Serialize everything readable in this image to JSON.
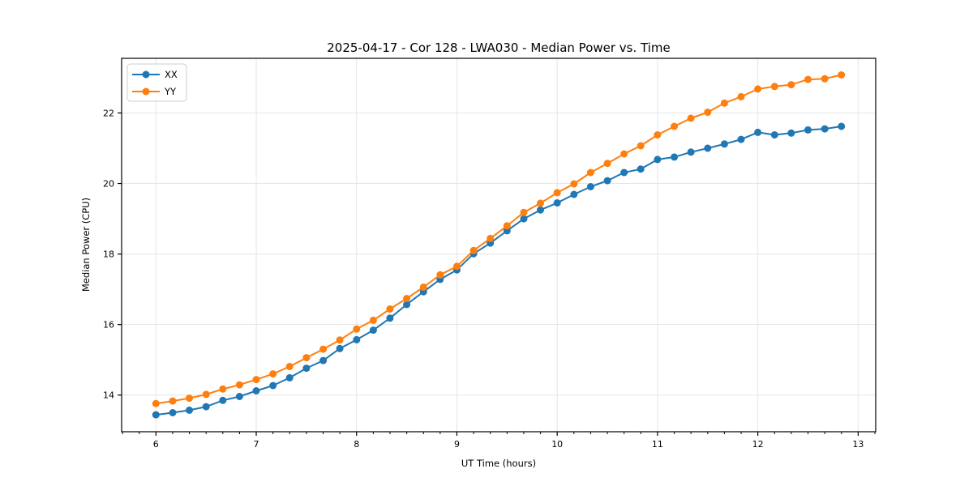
{
  "page": {
    "background": "#ffffff"
  },
  "chart_data": {
    "type": "line",
    "title": "2025-04-17 - Cor 128 - LWA030 - Median Power vs. Time",
    "xlabel": "UT Time (hours)",
    "ylabel": "Median Power (CPU)",
    "xlim": [
      5.658,
      13.175
    ],
    "ylim": [
      12.96,
      23.55
    ],
    "x_ticks": [
      6,
      7,
      8,
      9,
      10,
      11,
      12,
      13
    ],
    "y_ticks": [
      14,
      16,
      18,
      20,
      22
    ],
    "x_minor_tick_step": 0.16667,
    "grid": true,
    "legend": {
      "position": "upper-left"
    },
    "x": [
      6.0,
      6.167,
      6.333,
      6.5,
      6.667,
      6.833,
      7.0,
      7.167,
      7.333,
      7.5,
      7.667,
      7.833,
      8.0,
      8.167,
      8.333,
      8.5,
      8.667,
      8.833,
      9.0,
      9.167,
      9.333,
      9.5,
      9.667,
      9.833,
      10.0,
      10.167,
      10.333,
      10.5,
      10.667,
      10.833,
      11.0,
      11.167,
      11.333,
      11.5,
      11.667,
      11.833,
      12.0,
      12.167,
      12.333,
      12.5,
      12.667,
      12.833
    ],
    "series": [
      {
        "name": "XX",
        "color": "#1f77b4",
        "values": [
          13.44,
          13.5,
          13.57,
          13.67,
          13.85,
          13.96,
          14.12,
          14.27,
          14.49,
          14.76,
          14.98,
          15.32,
          15.57,
          15.84,
          16.18,
          16.57,
          16.93,
          17.28,
          17.55,
          18.01,
          18.31,
          18.66,
          19.0,
          19.25,
          19.45,
          19.69,
          19.91,
          20.08,
          20.31,
          20.41,
          20.68,
          20.75,
          20.89,
          21.0,
          21.12,
          21.25,
          21.45,
          21.38,
          21.43,
          21.52,
          21.55,
          21.62
        ]
      },
      {
        "name": "YY",
        "color": "#ff7f0e",
        "values": [
          13.76,
          13.83,
          13.91,
          14.02,
          14.17,
          14.29,
          14.44,
          14.6,
          14.81,
          15.06,
          15.3,
          15.56,
          15.87,
          16.12,
          16.44,
          16.74,
          17.06,
          17.41,
          17.65,
          18.1,
          18.44,
          18.8,
          19.18,
          19.44,
          19.74,
          19.99,
          20.31,
          20.57,
          20.84,
          21.07,
          21.38,
          21.62,
          21.85,
          22.02,
          22.28,
          22.46,
          22.68,
          22.75,
          22.8,
          22.95,
          22.97,
          23.08
        ]
      }
    ]
  },
  "style_colors": {
    "grid": "#e6e6e6",
    "spine": "#000000",
    "text": "#000000",
    "legend_border": "#cccccc",
    "legend_bg": "#ffffff"
  }
}
